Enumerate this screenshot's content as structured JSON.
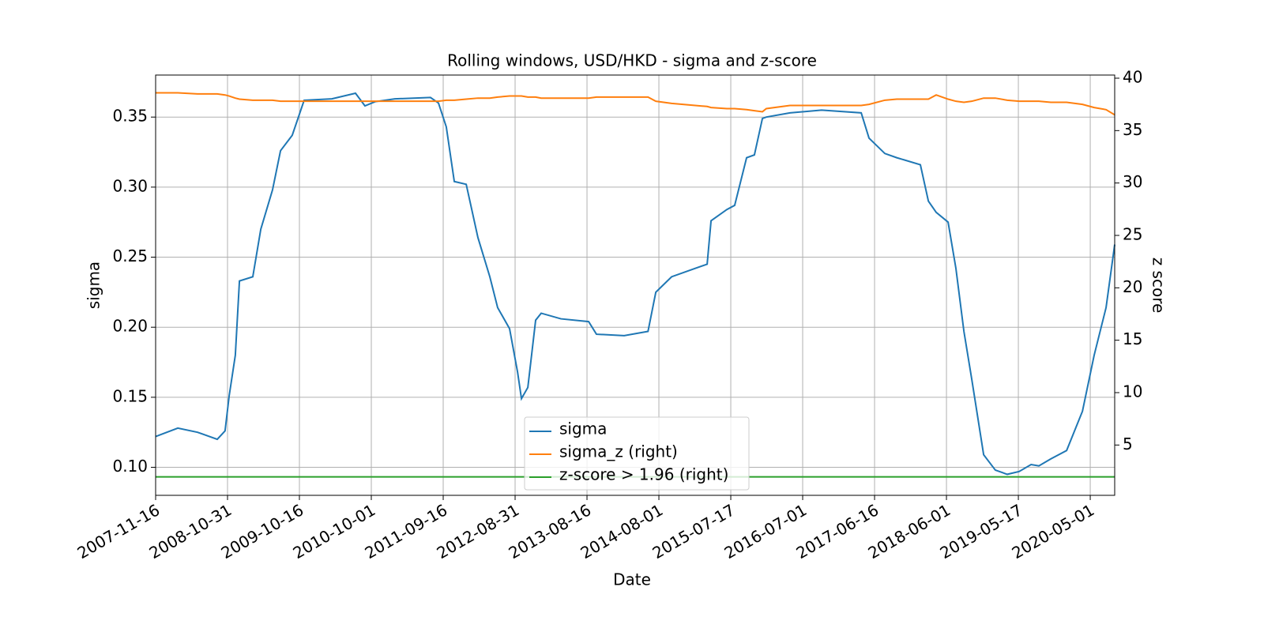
{
  "chart_data": {
    "type": "line",
    "title": "Rolling windows, USD/HKD - sigma and z-score",
    "x_label": "Date",
    "y_label": "sigma",
    "y2_label": "z score",
    "x": [
      "2007-11-16",
      "2008-03-03",
      "2008-06-07",
      "2008-09-11",
      "2008-10-19",
      "2008-11-08",
      "2008-12-08",
      "2008-12-28",
      "2009-03-03",
      "2009-04-11",
      "2009-06-07",
      "2009-07-16",
      "2009-09-11",
      "2009-11-08",
      "2010-03-23",
      "2010-07-16",
      "2010-08-31",
      "2010-10-20",
      "2011-01-24",
      "2011-07-16",
      "2011-08-24",
      "2011-10-01",
      "2011-11-09",
      "2012-01-06",
      "2012-03-03",
      "2012-04-30",
      "2012-06-07",
      "2012-08-04",
      "2012-09-12",
      "2012-10-01",
      "2012-11-01",
      "2012-12-09",
      "2013-01-05",
      "2013-04-11",
      "2013-08-24",
      "2013-10-01",
      "2014-02-13",
      "2014-06-09",
      "2014-07-17",
      "2014-10-02",
      "2015-01-25",
      "2015-03-24",
      "2015-04-12",
      "2015-06-28",
      "2015-08-05",
      "2015-10-02",
      "2015-11-09",
      "2015-12-18",
      "2016-01-06",
      "2016-04-30",
      "2016-10-01",
      "2017-04-12",
      "2017-05-20",
      "2017-08-05",
      "2017-10-02",
      "2018-01-25",
      "2018-03-05",
      "2018-04-12",
      "2018-06-09",
      "2018-07-17",
      "2018-08-25",
      "2018-10-02",
      "2018-11-29",
      "2019-01-25",
      "2019-03-24",
      "2019-05-21",
      "2019-07-18",
      "2019-08-25",
      "2019-10-22",
      "2020-01-07",
      "2020-03-24",
      "2020-05-20",
      "2020-07-17",
      "2020-08-28"
    ],
    "series": [
      {
        "name": "sigma",
        "color": "#1f77b4",
        "axis": "y",
        "values": [
          0.122,
          0.128,
          0.125,
          0.12,
          0.126,
          0.151,
          0.18,
          0.233,
          0.236,
          0.27,
          0.298,
          0.326,
          0.337,
          0.362,
          0.363,
          0.367,
          0.358,
          0.361,
          0.363,
          0.364,
          0.36,
          0.343,
          0.304,
          0.302,
          0.264,
          0.236,
          0.214,
          0.199,
          0.168,
          0.149,
          0.157,
          0.205,
          0.21,
          0.206,
          0.204,
          0.195,
          0.194,
          0.197,
          0.225,
          0.236,
          0.242,
          0.245,
          0.276,
          0.284,
          0.287,
          0.321,
          0.323,
          0.349,
          0.35,
          0.353,
          0.355,
          0.353,
          0.335,
          0.324,
          0.321,
          0.316,
          0.29,
          0.282,
          0.275,
          0.242,
          0.197,
          0.163,
          0.109,
          0.098,
          0.095,
          0.097,
          0.102,
          0.101,
          0.106,
          0.112,
          0.14,
          0.18,
          0.214,
          0.259
        ]
      },
      {
        "name": "sigma_z (right)",
        "color": "#ff7f0e",
        "axis": "y2",
        "values": [
          38.6,
          38.6,
          38.5,
          38.5,
          38.4,
          38.3,
          38.1,
          38.0,
          37.9,
          37.9,
          37.9,
          37.8,
          37.8,
          37.8,
          37.8,
          37.8,
          37.8,
          37.8,
          37.8,
          37.8,
          37.8,
          37.9,
          37.9,
          38.0,
          38.1,
          38.1,
          38.2,
          38.3,
          38.3,
          38.3,
          38.2,
          38.2,
          38.1,
          38.1,
          38.1,
          38.2,
          38.2,
          38.2,
          37.8,
          37.6,
          37.4,
          37.3,
          37.2,
          37.1,
          37.1,
          37.0,
          36.9,
          36.8,
          37.1,
          37.4,
          37.4,
          37.4,
          37.5,
          37.9,
          38.0,
          38.0,
          38.0,
          38.4,
          38.0,
          37.8,
          37.7,
          37.8,
          38.1,
          38.1,
          37.9,
          37.8,
          37.8,
          37.8,
          37.7,
          37.7,
          37.5,
          37.2,
          37.0,
          36.5
        ]
      },
      {
        "name": "z-score > 1.96 (right)",
        "color": "#2ca02c",
        "axis": "y2",
        "values": [
          1.96,
          1.96,
          1.96,
          1.96,
          1.96,
          1.96,
          1.96,
          1.96,
          1.96,
          1.96,
          1.96,
          1.96,
          1.96,
          1.96,
          1.96,
          1.96,
          1.96,
          1.96,
          1.96,
          1.96,
          1.96,
          1.96,
          1.96,
          1.96,
          1.96,
          1.96,
          1.96,
          1.96,
          1.96,
          1.96,
          1.96,
          1.96,
          1.96,
          1.96,
          1.96,
          1.96,
          1.96,
          1.96,
          1.96,
          1.96,
          1.96,
          1.96,
          1.96,
          1.96,
          1.96,
          1.96,
          1.96,
          1.96,
          1.96,
          1.96,
          1.96,
          1.96,
          1.96,
          1.96,
          1.96,
          1.96,
          1.96,
          1.96,
          1.96,
          1.96,
          1.96,
          1.96,
          1.96,
          1.96,
          1.96,
          1.96,
          1.96,
          1.96,
          1.96,
          1.96,
          1.96,
          1.96,
          1.96,
          1.96
        ]
      }
    ],
    "xlim": [
      "2007-11-16",
      "2020-08-28"
    ],
    "xticks": [
      "2007-11-16",
      "2008-10-31",
      "2009-10-16",
      "2010-10-01",
      "2011-09-16",
      "2012-08-31",
      "2013-08-16",
      "2014-08-01",
      "2015-07-17",
      "2016-07-01",
      "2017-06-16",
      "2018-06-01",
      "2019-05-17",
      "2020-05-01"
    ],
    "ylim": [
      0.08,
      0.38
    ],
    "yticks": [
      {
        "value": 0.1,
        "label": "0.10"
      },
      0.15,
      {
        "value": 0.2,
        "label": "0.20"
      },
      0.25,
      {
        "value": 0.3,
        "label": "0.30"
      },
      0.35
    ],
    "y2lim": [
      0.2,
      40.3
    ],
    "y2ticks": [
      5,
      10,
      15,
      20,
      25,
      30,
      35,
      40
    ],
    "grid": true,
    "legend": "lower center"
  }
}
